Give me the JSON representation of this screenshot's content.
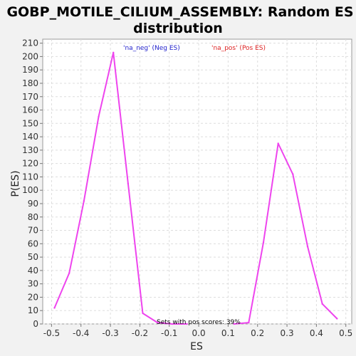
{
  "chart_data": {
    "type": "line",
    "title_line1": "GOBP_MOTILE_CILIUM_ASSEMBLY: Random ES",
    "title_line2": "distribution",
    "xlabel": "ES",
    "ylabel": "P(ES)",
    "xlim": [
      -0.53,
      0.52
    ],
    "ylim": [
      0,
      213
    ],
    "xticks": [
      -0.5,
      -0.4,
      -0.3,
      -0.2,
      -0.1,
      0.0,
      0.1,
      0.2,
      0.3,
      0.4,
      0.5
    ],
    "xtick_labels": [
      "-0.5",
      "-0.4",
      "-0.3",
      "-0.2",
      "-0.1",
      "0.0",
      "0.1",
      "0.2",
      "0.3",
      "0.4",
      "0.5"
    ],
    "yticks": [
      0,
      10,
      20,
      30,
      40,
      50,
      60,
      70,
      80,
      90,
      100,
      110,
      120,
      130,
      140,
      150,
      160,
      170,
      180,
      190,
      200,
      210
    ],
    "ytick_labels": [
      "0",
      "10",
      "20",
      "30",
      "40",
      "50",
      "60",
      "70",
      "80",
      "90",
      "100",
      "110",
      "120",
      "130",
      "140",
      "150",
      "160",
      "170",
      "180",
      "190",
      "200",
      "210"
    ],
    "grid": true,
    "series": [
      {
        "name": "'na_neg' (Neg ES)",
        "color": "#ee44ee",
        "x": [
          -0.49,
          -0.44,
          -0.39,
          -0.34,
          -0.29,
          -0.24,
          -0.19,
          -0.14,
          -0.09,
          -0.04
        ],
        "y": [
          12,
          38,
          92,
          155,
          203,
          105,
          8,
          1,
          0,
          0
        ]
      },
      {
        "name": "'na_pos' (Pos ES)",
        "color": "#ee44ee",
        "x": [
          0.12,
          0.17,
          0.22,
          0.27,
          0.32,
          0.37,
          0.42,
          0.47
        ],
        "y": [
          0,
          1,
          61,
          135,
          112,
          58,
          15,
          4
        ]
      }
    ],
    "legend": [
      {
        "label": "'na_neg' (Neg ES)",
        "color": "#2222cc"
      },
      {
        "label": "'na_pos' (Pos ES)",
        "color": "#dd2222"
      }
    ],
    "legend_position": "top",
    "annotation": "Sets with pos scores: 39%"
  }
}
